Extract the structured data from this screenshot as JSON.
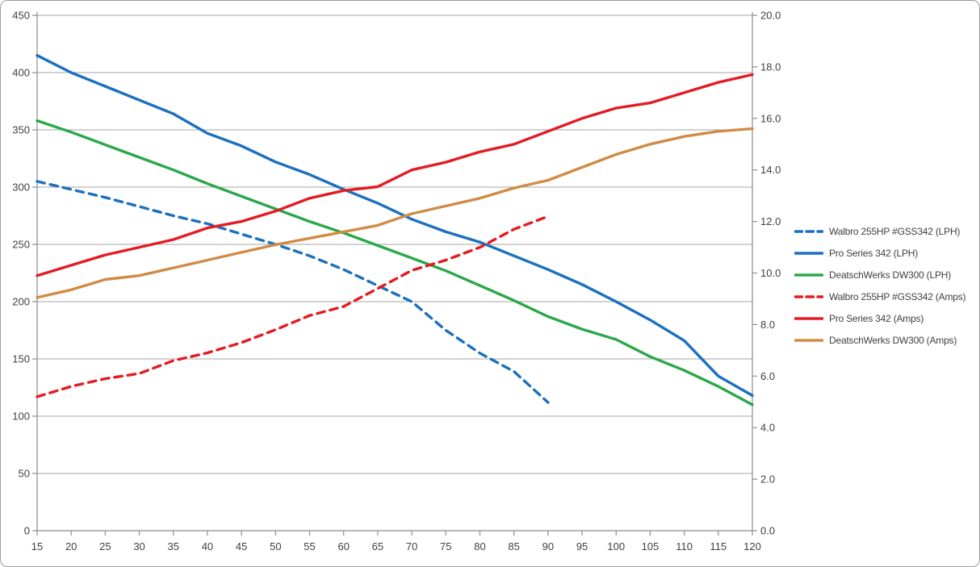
{
  "chart_data": {
    "type": "line",
    "title": "",
    "xlabel": "",
    "ylabel_left": "",
    "ylabel_right": "",
    "grid": "horizontal-major",
    "legend_position": "right",
    "x": [
      15,
      20,
      25,
      30,
      35,
      40,
      45,
      50,
      55,
      60,
      65,
      70,
      75,
      80,
      85,
      90,
      95,
      100,
      105,
      110,
      115,
      120
    ],
    "x_axis": {
      "min": 15,
      "max": 120,
      "step": 5,
      "tick_labels": [
        "15",
        "20",
        "25",
        "30",
        "35",
        "40",
        "45",
        "50",
        "55",
        "60",
        "65",
        "70",
        "75",
        "80",
        "85",
        "90",
        "95",
        "100",
        "105",
        "110",
        "115",
        "120"
      ]
    },
    "y_axis_left": {
      "min": 0,
      "max": 450,
      "step": 50,
      "tick_labels": [
        "0",
        "50",
        "100",
        "150",
        "200",
        "250",
        "300",
        "350",
        "400",
        "450"
      ]
    },
    "y_axis_right": {
      "min": 0,
      "max": 20,
      "step": 2,
      "tick_labels": [
        "0.0",
        "2.0",
        "4.0",
        "6.0",
        "8.0",
        "10.0",
        "12.0",
        "14.0",
        "16.0",
        "18.0",
        "20.0"
      ]
    },
    "series": [
      {
        "name": "Walbro 255HP #GSS342 (LPH)",
        "axis": "left",
        "unit": "LPH",
        "line_style": "dashed",
        "color": "#1B70C0",
        "x": [
          15,
          20,
          25,
          30,
          35,
          40,
          45,
          50,
          55,
          60,
          65,
          70,
          75,
          80,
          85,
          90
        ],
        "values": [
          305,
          298,
          291,
          283,
          275,
          268,
          259,
          250,
          240,
          228,
          214,
          200,
          175,
          155,
          139,
          112
        ]
      },
      {
        "name": "Pro Series 342 (LPH)",
        "axis": "left",
        "unit": "LPH",
        "line_style": "solid",
        "color": "#1B70C0",
        "x": [
          15,
          20,
          25,
          30,
          35,
          40,
          45,
          50,
          55,
          60,
          65,
          70,
          75,
          80,
          85,
          90,
          95,
          100,
          105,
          110,
          115,
          120
        ],
        "values": [
          415,
          400,
          388,
          376,
          364,
          347,
          336,
          322,
          311,
          298,
          286,
          272,
          261,
          252,
          240,
          228,
          215,
          200,
          184,
          166,
          135,
          118
        ]
      },
      {
        "name": "DeatschWerks DW300 (LPH)",
        "axis": "left",
        "unit": "LPH",
        "line_style": "solid",
        "color": "#2BA84A",
        "x": [
          15,
          20,
          25,
          30,
          35,
          40,
          45,
          50,
          55,
          60,
          65,
          70,
          75,
          80,
          85,
          90,
          95,
          100,
          105,
          110,
          115,
          120
        ],
        "values": [
          358,
          348,
          337,
          326,
          315,
          303,
          292,
          281,
          270,
          260,
          249,
          238,
          227,
          214,
          201,
          187,
          176,
          167,
          152,
          140,
          126,
          110
        ]
      },
      {
        "name": "Walbro 255HP #GSS342 (Amps)",
        "axis": "right",
        "unit": "Amps",
        "line_style": "dashed",
        "color": "#E41B23",
        "x": [
          15,
          20,
          25,
          30,
          35,
          40,
          45,
          50,
          55,
          60,
          65,
          70,
          75,
          80,
          85,
          90
        ],
        "values": [
          5.2,
          5.6,
          5.9,
          6.1,
          6.6,
          6.9,
          7.3,
          7.8,
          8.35,
          8.7,
          9.4,
          10.1,
          10.5,
          11.0,
          11.7,
          12.2
        ]
      },
      {
        "name": "Pro Series 342 (Amps)",
        "axis": "right",
        "unit": "Amps",
        "line_style": "solid",
        "color": "#E41B23",
        "x": [
          15,
          20,
          25,
          30,
          35,
          40,
          45,
          50,
          55,
          60,
          65,
          70,
          75,
          80,
          85,
          90,
          95,
          100,
          105,
          110,
          115,
          120
        ],
        "values": [
          9.9,
          10.3,
          10.7,
          11.0,
          11.3,
          11.75,
          12.0,
          12.4,
          12.9,
          13.2,
          13.35,
          14.0,
          14.3,
          14.7,
          15.0,
          15.5,
          16.0,
          16.4,
          16.6,
          17.0,
          17.4,
          17.7
        ]
      },
      {
        "name": "DeatschWerks DW300 (Amps)",
        "axis": "right",
        "unit": "Amps",
        "line_style": "solid",
        "color": "#D08B45",
        "x": [
          15,
          20,
          25,
          30,
          35,
          40,
          45,
          50,
          55,
          60,
          65,
          70,
          75,
          80,
          85,
          90,
          95,
          100,
          105,
          110,
          115,
          120
        ],
        "values": [
          9.05,
          9.35,
          9.75,
          9.9,
          10.2,
          10.5,
          10.8,
          11.1,
          11.35,
          11.6,
          11.85,
          12.3,
          12.6,
          12.9,
          13.3,
          13.6,
          14.1,
          14.6,
          15.0,
          15.3,
          15.5,
          15.6
        ]
      }
    ]
  },
  "style": {
    "gridline_color": "#A6A6A6",
    "axis_line_color": "#8C8C8C",
    "tick_color": "#8C8C8C",
    "text_color": "#404040",
    "frame_border_color": "#9D9D9D",
    "background_color": "#FFFFFF"
  }
}
